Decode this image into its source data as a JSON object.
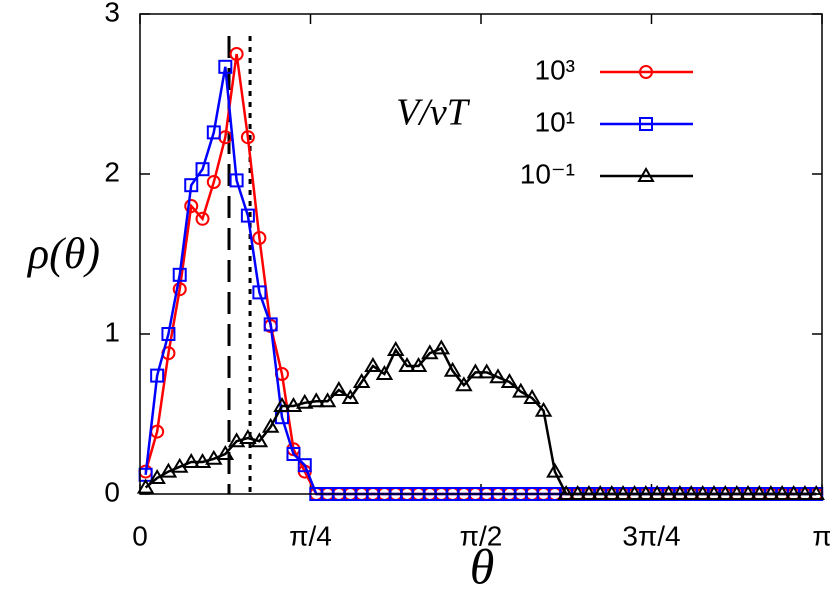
{
  "chart_data": {
    "type": "line",
    "x_label": "θ",
    "y_label": "ρ(θ)",
    "legend_title": "V/vT",
    "legend_position": "upper right",
    "xlim": [
      0,
      3.14159
    ],
    "ylim": [
      0,
      3
    ],
    "xticks": [
      {
        "value": 0,
        "label": "0"
      },
      {
        "value": 0.785398,
        "label": "π/4"
      },
      {
        "value": 1.570796,
        "label": "π/2"
      },
      {
        "value": 2.356194,
        "label": "3π/4"
      },
      {
        "value": 3.141593,
        "label": "π"
      }
    ],
    "yticks": [
      0,
      1,
      2,
      3
    ],
    "vlines": [
      {
        "x": 0.41,
        "style": "dashed"
      },
      {
        "x": 0.507,
        "style": "dotted"
      }
    ],
    "x": [
      0.026,
      0.079,
      0.131,
      0.183,
      0.236,
      0.288,
      0.34,
      0.393,
      0.445,
      0.497,
      0.55,
      0.602,
      0.654,
      0.707,
      0.759,
      0.812,
      0.864,
      0.916,
      0.969,
      1.021,
      1.073,
      1.126,
      1.178,
      1.23,
      1.283,
      1.335,
      1.388,
      1.44,
      1.492,
      1.545,
      1.597,
      1.649,
      1.702,
      1.754,
      1.806,
      1.859,
      1.911,
      1.963,
      2.016,
      2.068,
      2.12,
      2.173,
      2.225,
      2.278,
      2.33,
      2.382,
      2.435,
      2.487,
      2.539,
      2.592,
      2.644,
      2.696,
      2.749,
      2.801,
      2.853,
      2.906,
      2.958,
      3.011,
      3.063,
      3.115
    ],
    "series": [
      {
        "name": "10³",
        "color": "#ff0000",
        "marker": "circle",
        "values": [
          0.14,
          0.39,
          0.88,
          1.28,
          1.8,
          1.72,
          1.95,
          2.23,
          2.75,
          2.23,
          1.6,
          1.05,
          0.75,
          0.28,
          0.14,
          0,
          0,
          0,
          0,
          0,
          0,
          0,
          0,
          0,
          0,
          0,
          0,
          0,
          0,
          0,
          0,
          0,
          0,
          0,
          0,
          0,
          0,
          0,
          0,
          0,
          0,
          0,
          0,
          0,
          0,
          0,
          0,
          0,
          0,
          0,
          0,
          0,
          0,
          0,
          0,
          0,
          0,
          0,
          0,
          0
        ]
      },
      {
        "name": "10¹",
        "color": "#0000ff",
        "marker": "square",
        "values": [
          0.12,
          0.74,
          1.0,
          1.37,
          1.93,
          2.03,
          2.26,
          2.67,
          1.96,
          1.74,
          1.26,
          1.06,
          0.48,
          0.25,
          0.18,
          0,
          0,
          0,
          0,
          0,
          0,
          0,
          0,
          0,
          0,
          0,
          0,
          0,
          0,
          0,
          0,
          0,
          0,
          0,
          0,
          0,
          0,
          0,
          0,
          0,
          0,
          0,
          0,
          0,
          0,
          0,
          0,
          0,
          0,
          0,
          0,
          0,
          0,
          0,
          0,
          0,
          0,
          0,
          0,
          0
        ]
      },
      {
        "name": "10⁻¹",
        "color": "#000000",
        "marker": "triangle",
        "values": [
          0.04,
          0.1,
          0.14,
          0.17,
          0.2,
          0.2,
          0.22,
          0.25,
          0.33,
          0.35,
          0.33,
          0.42,
          0.55,
          0.55,
          0.57,
          0.58,
          0.58,
          0.65,
          0.6,
          0.7,
          0.8,
          0.75,
          0.9,
          0.8,
          0.8,
          0.88,
          0.91,
          0.77,
          0.68,
          0.76,
          0.76,
          0.73,
          0.7,
          0.64,
          0.6,
          0.52,
          0.14,
          0,
          0,
          0,
          0,
          0,
          0,
          0,
          0,
          0,
          0,
          0,
          0,
          0,
          0,
          0,
          0,
          0,
          0,
          0,
          0,
          0,
          0,
          0
        ]
      }
    ]
  }
}
